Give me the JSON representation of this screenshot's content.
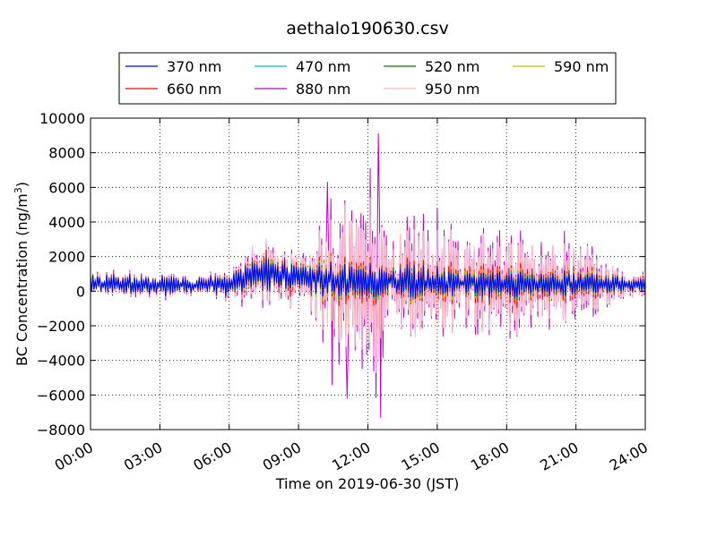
{
  "chart_data": {
    "type": "line",
    "title": "aethalo190630.csv",
    "xlabel": "Time on 2019-06-30 (JST)",
    "ylabel": "BC Concentration (ng/m",
    "ylabel_sup": "3",
    "ylabel_end": ")",
    "xlim": [
      "00:00",
      "24:00"
    ],
    "ylim": [
      -8000,
      10000
    ],
    "grid": true,
    "legend_position": "top-center",
    "x_ticks": [
      "00:00",
      "03:00",
      "06:00",
      "09:00",
      "12:00",
      "15:00",
      "18:00",
      "21:00",
      "24:00"
    ],
    "y_ticks": [
      "10000",
      "8000",
      "6000",
      "4000",
      "2000",
      "0",
      "−2000",
      "−4000",
      "−6000",
      "−8000"
    ],
    "y_tick_values": [
      10000,
      8000,
      6000,
      4000,
      2000,
      0,
      -2000,
      -4000,
      -6000,
      -8000
    ],
    "series": [
      {
        "name": "370 nm",
        "color": "#0000ff",
        "amplitude": [
          [
            0,
            450
          ],
          [
            6,
            500
          ],
          [
            7,
            900
          ],
          [
            9.5,
            700
          ],
          [
            10,
            800
          ],
          [
            13,
            900
          ],
          [
            16,
            600
          ],
          [
            21,
            600
          ],
          [
            23,
            350
          ],
          [
            24,
            300
          ]
        ]
      },
      {
        "name": "470 nm",
        "color": "#00bfbf",
        "amplitude": [
          [
            0,
            400
          ],
          [
            6,
            450
          ],
          [
            7,
            800
          ],
          [
            9.5,
            650
          ],
          [
            10,
            750
          ],
          [
            13,
            850
          ],
          [
            16,
            600
          ],
          [
            21,
            600
          ],
          [
            23,
            350
          ],
          [
            24,
            300
          ]
        ]
      },
      {
        "name": "520 nm",
        "color": "#008000",
        "amplitude": [
          [
            0,
            420
          ],
          [
            6,
            450
          ],
          [
            7,
            900
          ],
          [
            9.5,
            700
          ],
          [
            10,
            900
          ],
          [
            13,
            900
          ],
          [
            16,
            700
          ],
          [
            21,
            700
          ],
          [
            23,
            400
          ],
          [
            24,
            300
          ]
        ]
      },
      {
        "name": "590 nm",
        "color": "#bfbf00",
        "amplitude": [
          [
            0,
            450
          ],
          [
            6,
            500
          ],
          [
            7,
            1000
          ],
          [
            9.5,
            800
          ],
          [
            10,
            1100
          ],
          [
            13,
            1000
          ],
          [
            16,
            800
          ],
          [
            21,
            800
          ],
          [
            23,
            400
          ],
          [
            24,
            350
          ]
        ]
      },
      {
        "name": "660 nm",
        "color": "#ff0000",
        "amplitude": [
          [
            0,
            500
          ],
          [
            6,
            550
          ],
          [
            7,
            1200
          ],
          [
            9.5,
            900
          ],
          [
            10,
            1300
          ],
          [
            13,
            1200
          ],
          [
            16,
            1000
          ],
          [
            21,
            1000
          ],
          [
            23,
            450
          ],
          [
            24,
            400
          ]
        ]
      },
      {
        "name": "880 nm",
        "color": "#bf00bf",
        "amplitude": [
          [
            0,
            600
          ],
          [
            6,
            700
          ],
          [
            7,
            1800
          ],
          [
            9.5,
            1500
          ],
          [
            10,
            3500
          ],
          [
            11,
            4200
          ],
          [
            12.5,
            5500
          ],
          [
            13,
            3000
          ],
          [
            15,
            3000
          ],
          [
            18,
            2600
          ],
          [
            21,
            2400
          ],
          [
            23,
            700
          ],
          [
            24,
            600
          ]
        ]
      },
      {
        "name": "950 nm",
        "color": "#ffb6c1",
        "amplitude": [
          [
            0,
            550
          ],
          [
            6,
            650
          ],
          [
            7,
            1700
          ],
          [
            9.5,
            1400
          ],
          [
            10,
            3000
          ],
          [
            11,
            3800
          ],
          [
            12.5,
            4500
          ],
          [
            13,
            2800
          ],
          [
            15,
            2700
          ],
          [
            18,
            2300
          ],
          [
            21,
            2100
          ],
          [
            23,
            650
          ],
          [
            24,
            550
          ]
        ]
      }
    ],
    "baseline": [
      [
        0,
        400
      ],
      [
        6,
        350
      ],
      [
        7,
        1000
      ],
      [
        9,
        900
      ],
      [
        10,
        600
      ],
      [
        14,
        500
      ],
      [
        18,
        400
      ],
      [
        24,
        400
      ]
    ],
    "peaks": [
      {
        "x": 12.45,
        "series": "880 nm",
        "y": 9100
      },
      {
        "x": 12.55,
        "series": "880 nm",
        "y": -7300
      },
      {
        "x": 10.25,
        "series": "880 nm",
        "y": 6300
      },
      {
        "x": 11.1,
        "series": "880 nm",
        "y": -6200
      },
      {
        "x": 10.45,
        "series": "880 nm",
        "y": -5400
      }
    ]
  }
}
